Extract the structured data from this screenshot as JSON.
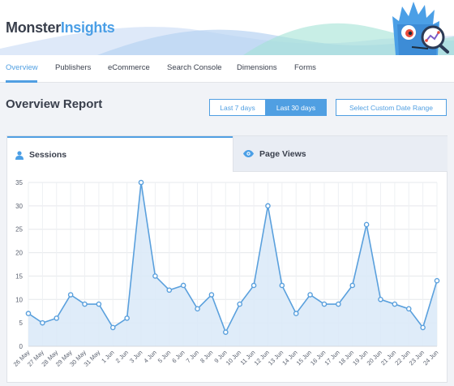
{
  "app": {
    "logo_part1": "Monster",
    "logo_part2": "Insights"
  },
  "nav": {
    "tabs": [
      "Overview",
      "Publishers",
      "eCommerce",
      "Search Console",
      "Dimensions",
      "Forms"
    ],
    "active": "Overview"
  },
  "report": {
    "title": "Overview Report",
    "buttons": {
      "last7": "Last 7 days",
      "last30": "Last 30 days",
      "custom": "Select Custom Date Range"
    },
    "active_range": "Last 30 days"
  },
  "tabs": {
    "sessions": "Sessions",
    "pageviews": "Page Views",
    "active": "Sessions"
  },
  "colors": {
    "accent": "#509fe2",
    "line": "#5aa0dd",
    "fill": "#d9e9f8"
  },
  "chart_data": {
    "type": "area",
    "x": [
      "26 May",
      "27 May",
      "28 May",
      "29 May",
      "30 May",
      "31 May",
      "1 Jun",
      "2 Jun",
      "3 Jun",
      "4 Jun",
      "5 Jun",
      "6 Jun",
      "7 Jun",
      "8 Jun",
      "9 Jun",
      "10 Jun",
      "11 Jun",
      "12 Jun",
      "13 Jun",
      "14 Jun",
      "15 Jun",
      "16 Jun",
      "17 Jun",
      "18 Jun",
      "19 Jun",
      "20 Jun",
      "21 Jun",
      "22 Jun",
      "23 Jun",
      "24 Jun"
    ],
    "series": [
      {
        "values": [
          7,
          5,
          6,
          11,
          9,
          9,
          4,
          6,
          35,
          15,
          12,
          13,
          8,
          11,
          3,
          9,
          13,
          30,
          13,
          7,
          11,
          9,
          9,
          13,
          26,
          10,
          9,
          8,
          4,
          14
        ]
      }
    ],
    "y_ticks": [
      0,
      5,
      10,
      15,
      20,
      25,
      30,
      35
    ],
    "ylim": [
      0,
      35
    ],
    "grid": true
  }
}
